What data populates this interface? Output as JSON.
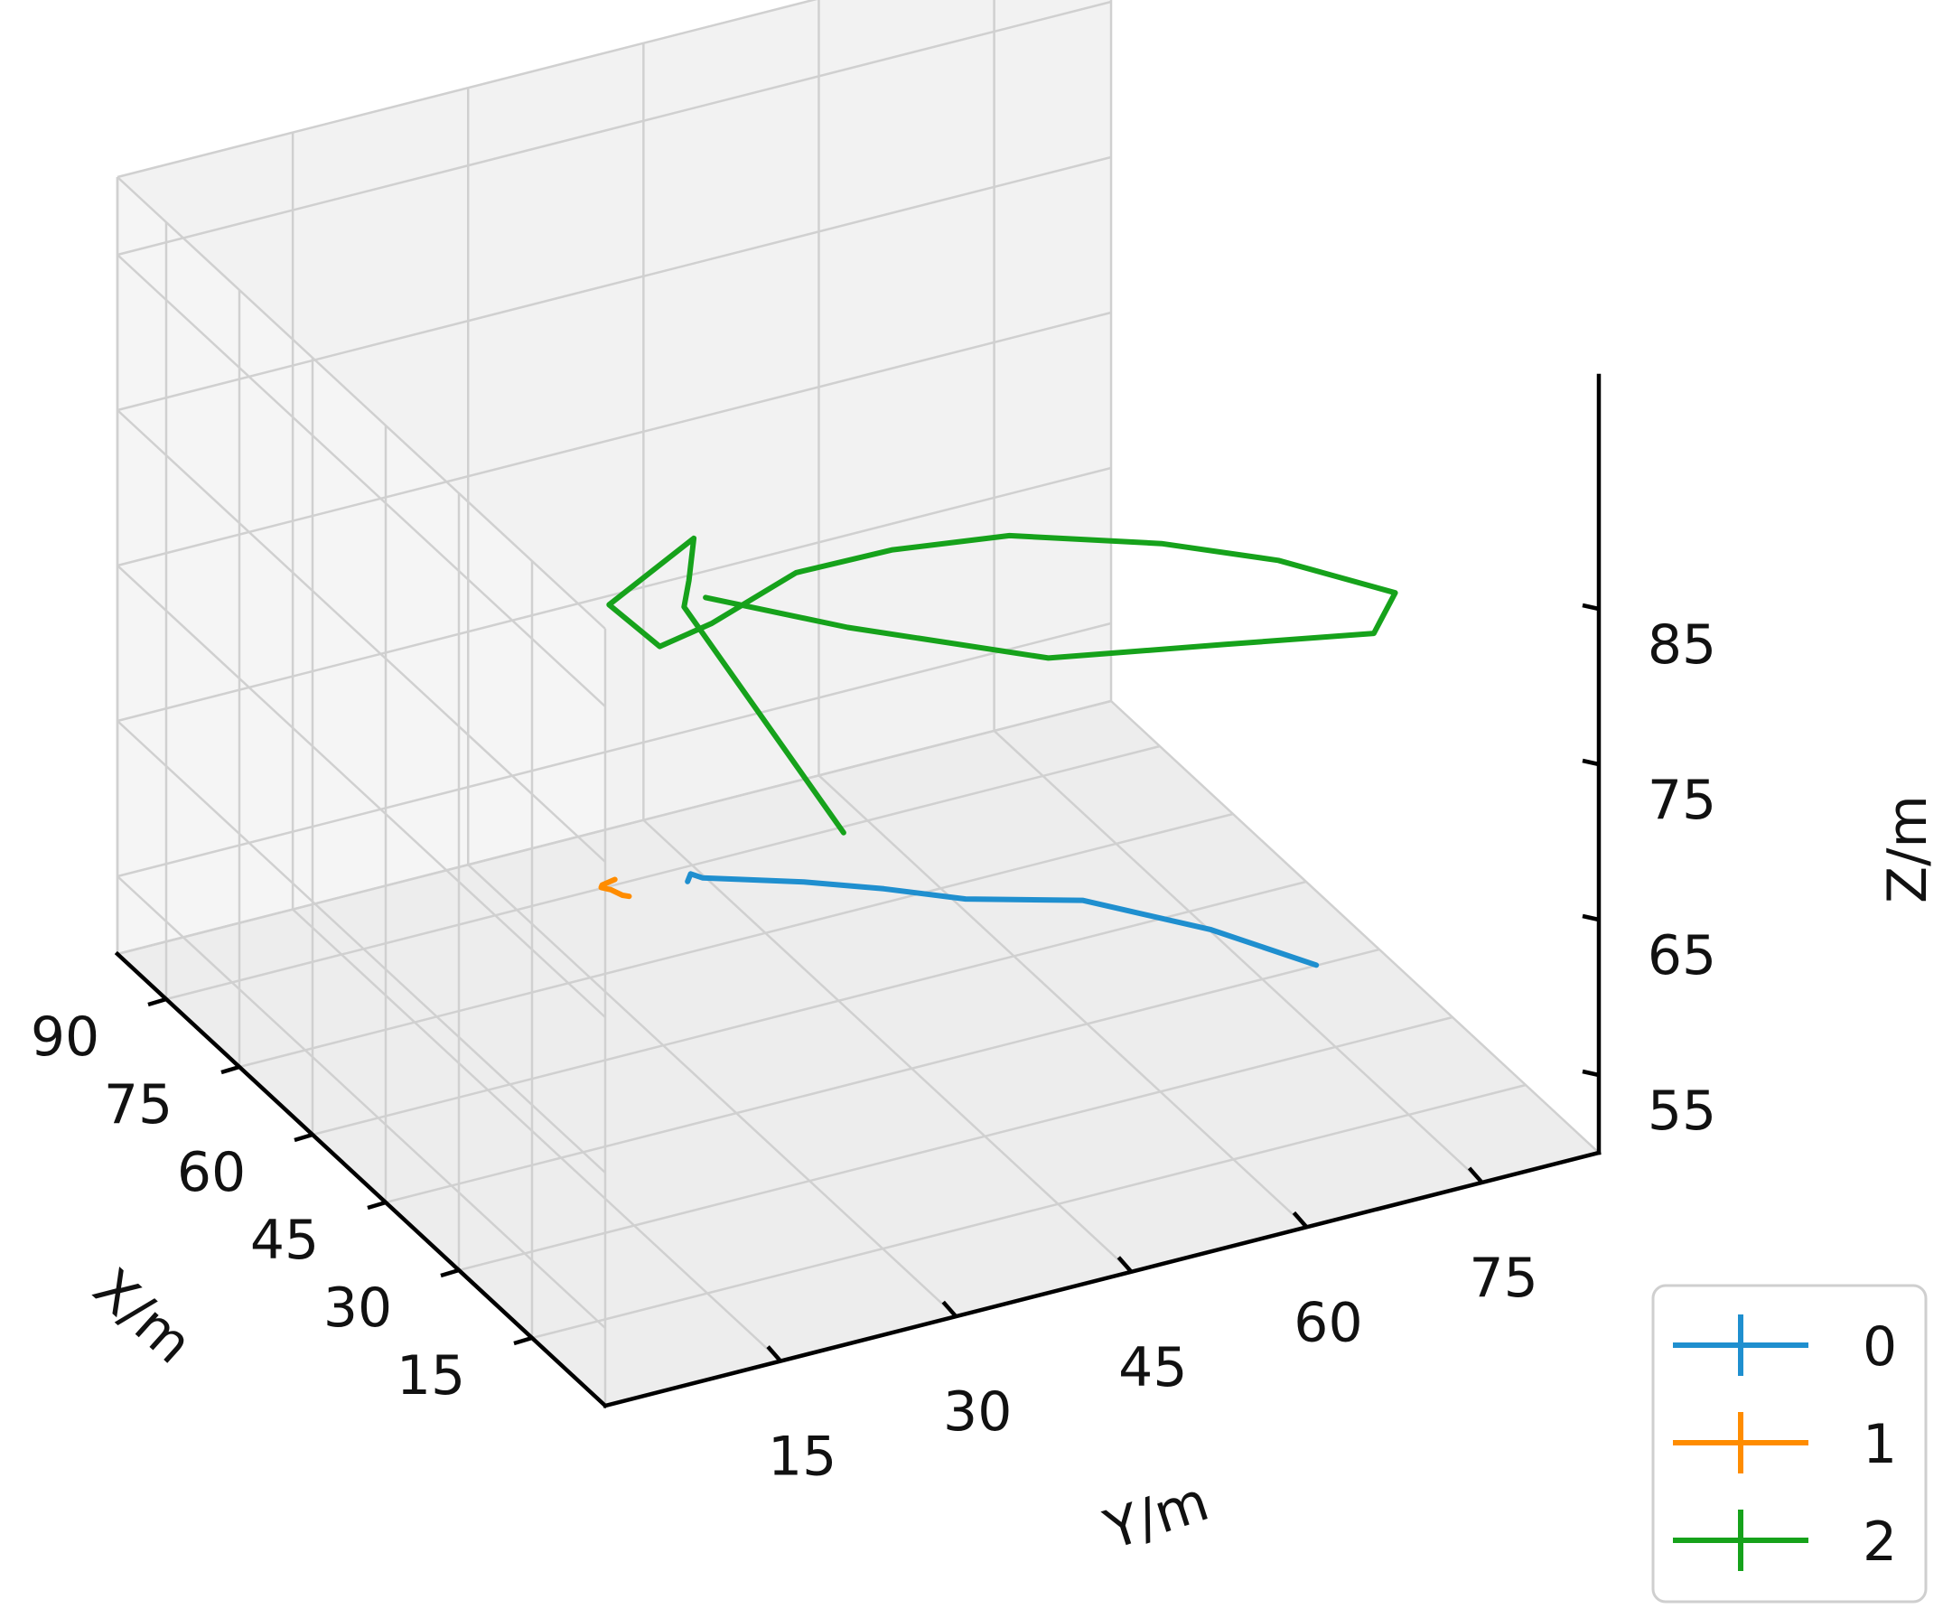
{
  "chart_data": {
    "type": "line",
    "projection": "3d",
    "xlabel": "X/m",
    "ylabel": "Y/m",
    "zlabel": "Z/m",
    "xticks": [
      "15",
      "30",
      "45",
      "60",
      "75",
      "90"
    ],
    "yticks": [
      "15",
      "30",
      "45",
      "60",
      "75"
    ],
    "zticks": [
      "55",
      "65",
      "75",
      "85"
    ],
    "xlim": [
      0,
      100
    ],
    "ylim": [
      0,
      85
    ],
    "zlim": [
      50,
      100
    ],
    "grid": true,
    "legend_position": "bottom-right",
    "series": [
      {
        "name": "0",
        "color": "#1f8fcf",
        "points": [
          {
            "x": 55,
            "y": 30,
            "z": 62
          },
          {
            "x": 40,
            "y": 24,
            "z": 68
          },
          {
            "x": 28,
            "y": 20,
            "z": 72
          },
          {
            "x": 18,
            "y": 19,
            "z": 75
          },
          {
            "x": 12,
            "y": 22,
            "z": 76
          },
          {
            "x": 10,
            "y": 28,
            "z": 75
          },
          {
            "x": 10,
            "y": 35,
            "z": 73
          },
          {
            "x": 10,
            "y": 45,
            "z": 71
          },
          {
            "x": 10,
            "y": 56,
            "z": 67
          },
          {
            "x": 10,
            "y": 65,
            "z": 63
          }
        ]
      },
      {
        "name": "1",
        "color": "#ff8c00",
        "points": [
          {
            "x": 55,
            "y": 25,
            "z": 62
          },
          {
            "x": 42,
            "y": 19,
            "z": 67
          },
          {
            "x": 30,
            "y": 13,
            "z": 72
          },
          {
            "x": 20,
            "y": 8,
            "z": 76
          },
          {
            "x": 15,
            "y": 6,
            "z": 78
          },
          {
            "x": 10,
            "y": 5,
            "z": 80
          }
        ]
      },
      {
        "name": "2",
        "color": "#16a21b",
        "points": [
          {
            "x": 35,
            "y": 35,
            "z": 70
          },
          {
            "x": 3,
            "y": 8,
            "z": 99
          },
          {
            "x": 2,
            "y": 8,
            "z": 101
          },
          {
            "x": 1,
            "y": 8,
            "z": 104
          },
          {
            "x": 4,
            "y": 2,
            "z": 100
          },
          {
            "x": 8,
            "y": 8,
            "z": 95
          },
          {
            "x": 7,
            "y": 12,
            "z": 96
          },
          {
            "x": 4,
            "y": 18,
            "z": 99
          },
          {
            "x": 1,
            "y": 25,
            "z": 100
          },
          {
            "x": 1,
            "y": 35,
            "z": 99
          },
          {
            "x": 1,
            "y": 48,
            "z": 96
          },
          {
            "x": 1,
            "y": 58,
            "z": 93
          },
          {
            "x": 1,
            "y": 68,
            "z": 89
          },
          {
            "x": 3,
            "y": 67,
            "z": 86
          },
          {
            "x": 5,
            "y": 55,
            "z": 87
          },
          {
            "x": 5,
            "y": 40,
            "z": 89
          },
          {
            "x": 3,
            "y": 22,
            "z": 95
          },
          {
            "x": 1,
            "y": 9,
            "z": 100
          }
        ]
      }
    ]
  }
}
